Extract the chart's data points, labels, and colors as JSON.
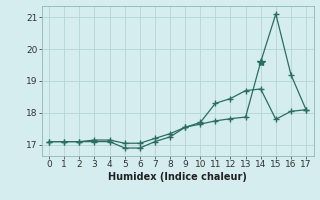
{
  "x": [
    0,
    1,
    2,
    3,
    4,
    5,
    6,
    7,
    8,
    9,
    10,
    11,
    12,
    13,
    14,
    15,
    16,
    17
  ],
  "y_line1": [
    17.1,
    17.1,
    17.1,
    17.1,
    17.1,
    16.9,
    16.9,
    17.1,
    17.25,
    17.55,
    17.7,
    18.3,
    18.45,
    18.7,
    18.75,
    17.8,
    18.05,
    18.1
  ],
  "y_line2": [
    17.1,
    17.1,
    17.1,
    17.15,
    17.15,
    17.05,
    17.05,
    17.2,
    17.35,
    17.55,
    17.65,
    17.75,
    17.82,
    17.87,
    19.6,
    21.1,
    19.2,
    18.1
  ],
  "line_color": "#2a6e62",
  "bg_color": "#d5edef",
  "grid_color": "#b8d8da",
  "xlabel": "Humidex (Indice chaleur)",
  "ylim": [
    16.65,
    21.35
  ],
  "xlim": [
    -0.5,
    17.5
  ],
  "yticks": [
    17,
    18,
    19,
    20,
    21
  ],
  "xticks": [
    0,
    1,
    2,
    3,
    4,
    5,
    6,
    7,
    8,
    9,
    10,
    11,
    12,
    13,
    14,
    15,
    16,
    17
  ],
  "marker": "+",
  "peak_marker": "*",
  "markersize": 4,
  "peak_markersize": 6,
  "linewidth": 0.9,
  "xlabel_fontsize": 7,
  "tick_fontsize": 6.5
}
